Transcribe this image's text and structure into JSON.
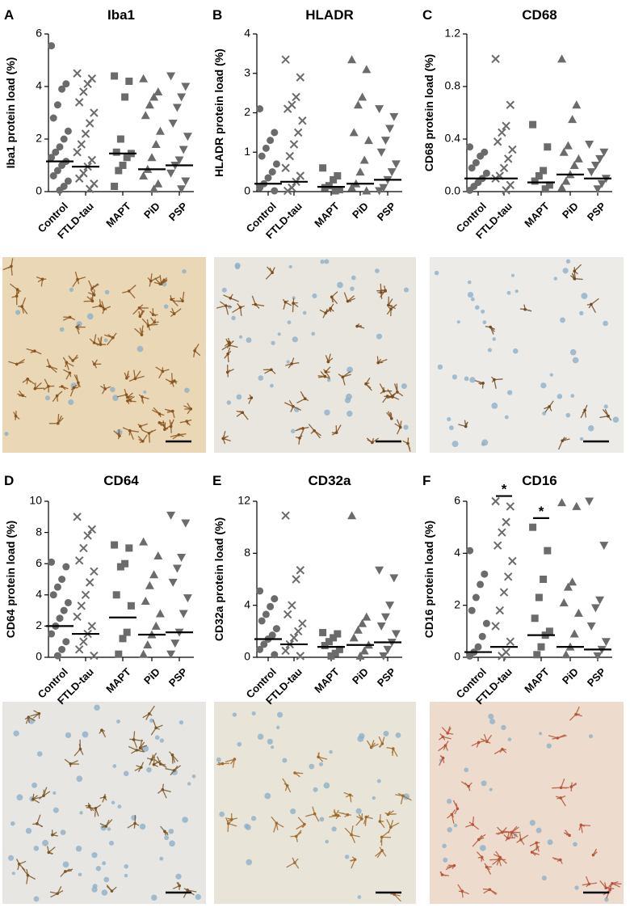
{
  "chart_data": [
    {
      "type": "scatter",
      "panel": "A",
      "title": "Iba1",
      "y_label": "Iba1 protein load (%)",
      "categories": [
        "Control",
        "FTLD-tau",
        "MAPT",
        "PiD",
        "PSP"
      ],
      "markers": [
        "circle",
        "x",
        "square",
        "triangle-up",
        "triangle-down"
      ],
      "color": "#6b6b6b",
      "median_color": "#000000",
      "ylim": [
        0,
        6
      ],
      "yticks": [
        0,
        2,
        4,
        6
      ],
      "groups": [
        [
          5.55,
          4.1,
          3.9,
          3.3,
          2.8,
          2.3,
          2.0,
          1.7,
          1.5,
          1.3,
          1.15,
          1.0,
          0.8,
          0.6,
          0.4,
          0.2,
          0.05
        ],
        [
          4.5,
          4.3,
          4.1,
          3.8,
          3.4,
          3.0,
          2.6,
          2.2,
          1.8,
          1.5,
          1.2,
          0.95,
          0.7,
          0.5,
          0.3,
          0.1
        ],
        [
          4.4,
          4.2,
          3.6,
          2.0,
          1.5,
          1.45,
          1.3,
          1.0,
          0.8,
          0.2
        ],
        [
          4.3,
          3.8,
          3.6,
          3.3,
          2.9,
          2.3,
          1.8,
          1.3,
          0.85,
          0.6,
          0.3,
          0.1
        ],
        [
          4.4,
          4.0,
          3.6,
          3.2,
          2.6,
          2.1,
          1.6,
          1.2,
          1.0,
          0.7,
          0.4,
          0.1
        ]
      ],
      "medians": [
        1.15,
        0.95,
        1.45,
        0.85,
        1.0
      ]
    },
    {
      "type": "scatter",
      "panel": "B",
      "title": "HLADR",
      "y_label": "HLADR protein load (%)",
      "categories": [
        "Control",
        "FTLD-tau",
        "MAPT",
        "PiD",
        "PSP"
      ],
      "markers": [
        "circle",
        "x",
        "square",
        "triangle-up",
        "triangle-down"
      ],
      "color": "#6b6b6b",
      "median_color": "#000000",
      "ylim": [
        0,
        4
      ],
      "yticks": [
        0,
        1,
        2,
        3,
        4
      ],
      "groups": [
        [
          2.1,
          1.5,
          1.3,
          1.1,
          0.9,
          0.7,
          0.5,
          0.35,
          0.2,
          0.1,
          0.02
        ],
        [
          3.35,
          2.9,
          2.4,
          2.2,
          2.1,
          1.8,
          1.5,
          1.2,
          0.9,
          0.6,
          0.4,
          0.25,
          0.1,
          0.02
        ],
        [
          0.6,
          0.4,
          0.3,
          0.15,
          0.1,
          0.05,
          0.02
        ],
        [
          3.35,
          3.1,
          2.4,
          2.2,
          1.5,
          1.3,
          0.8,
          0.5,
          0.2,
          0.1,
          0.02
        ],
        [
          2.1,
          1.9,
          1.6,
          1.3,
          1.0,
          0.7,
          0.5,
          0.3,
          0.1,
          0.02
        ]
      ],
      "medians": [
        0.2,
        0.25,
        0.12,
        0.2,
        0.3
      ]
    },
    {
      "type": "scatter",
      "panel": "C",
      "title": "CD68",
      "y_label": "CD68 protein load (%)",
      "categories": [
        "Control",
        "FTLD-tau",
        "MAPT",
        "PiD",
        "PSP"
      ],
      "markers": [
        "circle",
        "x",
        "square",
        "triangle-up",
        "triangle-down"
      ],
      "color": "#6b6b6b",
      "median_color": "#000000",
      "ylim": [
        0,
        1.2
      ],
      "yticks": [
        {
          "value": 0,
          "label": "0.0"
        },
        0.4,
        0.8,
        1.2
      ],
      "groups": [
        [
          0.34,
          0.3,
          0.27,
          0.22,
          0.18,
          0.14,
          0.1,
          0.07,
          0.04,
          0.01
        ],
        [
          1.01,
          0.66,
          0.5,
          0.45,
          0.38,
          0.32,
          0.25,
          0.18,
          0.12,
          0.1,
          0.05,
          0.01
        ],
        [
          0.51,
          0.34,
          0.16,
          0.12,
          0.08,
          0.05,
          0.02
        ],
        [
          1.01,
          0.66,
          0.55,
          0.35,
          0.3,
          0.25,
          0.2,
          0.13,
          0.08,
          0.03
        ],
        [
          0.36,
          0.3,
          0.25,
          0.2,
          0.15,
          0.1,
          0.06,
          0.02
        ]
      ],
      "medians": [
        0.1,
        0.1,
        0.07,
        0.13,
        0.1
      ]
    },
    {
      "type": "scatter",
      "panel": "D",
      "title": "CD64",
      "y_label": "CD64 protein load (%)",
      "categories": [
        "Control",
        "FTLD-tau",
        "MAPT",
        "PiD",
        "PSP"
      ],
      "markers": [
        "circle",
        "x",
        "square",
        "triangle-up",
        "triangle-down"
      ],
      "color": "#6b6b6b",
      "median_color": "#000000",
      "ylim": [
        0,
        10
      ],
      "yticks": [
        0,
        2,
        4,
        6,
        8,
        10
      ],
      "groups": [
        [
          6.1,
          5.8,
          5.0,
          4.5,
          4.0,
          3.5,
          3.0,
          2.5,
          2.0,
          1.5,
          1.0,
          0.5,
          0.1
        ],
        [
          9.0,
          8.2,
          7.8,
          7.0,
          6.2,
          5.5,
          4.8,
          4.0,
          3.3,
          2.6,
          2.0,
          1.5,
          1.0,
          0.5,
          0.1
        ],
        [
          7.2,
          7.0,
          6.0,
          5.8,
          4.0,
          3.3,
          1.6,
          1.2,
          0.2
        ],
        [
          7.4,
          6.5,
          5.3,
          4.6,
          3.6,
          2.8,
          2.0,
          1.45,
          0.8,
          0.2
        ],
        [
          9.1,
          8.6,
          6.4,
          5.7,
          4.8,
          3.8,
          2.8,
          1.6,
          0.9,
          0.2
        ]
      ],
      "medians": [
        2.0,
        1.5,
        2.55,
        1.45,
        1.6
      ]
    },
    {
      "type": "scatter",
      "panel": "E",
      "title": "CD32a",
      "y_label": "CD32a protein load (%)",
      "categories": [
        "Control",
        "FTLD-tau",
        "MAPT",
        "PiD",
        "PSP"
      ],
      "markers": [
        "circle",
        "x",
        "square",
        "triangle-up",
        "triangle-down"
      ],
      "color": "#6b6b6b",
      "median_color": "#000000",
      "ylim": [
        0,
        12
      ],
      "yticks": [
        0,
        4,
        8,
        12
      ],
      "groups": [
        [
          5.1,
          4.5,
          3.9,
          3.3,
          2.8,
          2.2,
          1.7,
          1.4,
          1.0,
          0.6,
          0.2
        ],
        [
          10.9,
          6.7,
          6.0,
          4.0,
          3.3,
          2.6,
          2.0,
          1.5,
          1.0,
          0.5,
          0.1
        ],
        [
          1.9,
          1.8,
          1.5,
          1.2,
          0.9,
          0.6,
          0.3,
          0.1
        ],
        [
          10.9,
          3.1,
          2.6,
          2.1,
          1.5,
          0.95,
          0.5,
          0.1
        ],
        [
          6.7,
          6.1,
          4.0,
          3.1,
          2.4,
          1.8,
          1.15,
          0.6,
          0.1
        ]
      ],
      "medians": [
        1.4,
        1.0,
        0.8,
        0.95,
        1.15
      ]
    },
    {
      "type": "scatter",
      "panel": "F",
      "title": "CD16",
      "y_label": "CD16 protein load (%)",
      "categories": [
        "Control",
        "FTLD-tau",
        "MAPT",
        "PiD",
        "PSP"
      ],
      "markers": [
        "circle",
        "x",
        "square",
        "triangle-up",
        "triangle-down"
      ],
      "color": "#6b6b6b",
      "median_color": "#000000",
      "ylim": [
        0,
        6
      ],
      "yticks": [
        0,
        2,
        4,
        6
      ],
      "groups": [
        [
          4.1,
          3.2,
          2.8,
          2.3,
          1.8,
          1.3,
          0.8,
          0.4,
          0.2,
          0.05
        ],
        [
          6.0,
          5.8,
          5.2,
          4.8,
          4.3,
          3.7,
          3.1,
          2.5,
          1.8,
          1.2,
          0.6,
          0.2,
          0.05
        ],
        [
          5.0,
          4.1,
          3.0,
          2.3,
          1.5,
          1.0,
          0.85,
          0.4,
          0.1
        ],
        [
          5.95,
          5.8,
          2.9,
          2.7,
          2.1,
          1.7,
          0.9,
          0.4,
          0.1
        ],
        [
          6.0,
          4.3,
          2.2,
          1.9,
          1.2,
          0.6,
          0.3,
          0.05
        ]
      ],
      "medians": [
        0.2,
        0.4,
        0.85,
        0.4,
        0.3
      ],
      "significance": [
        {
          "category": 1,
          "value": 6.2,
          "label": "*"
        },
        {
          "category": 2,
          "value": 5.35,
          "label": "*"
        }
      ]
    }
  ]
}
